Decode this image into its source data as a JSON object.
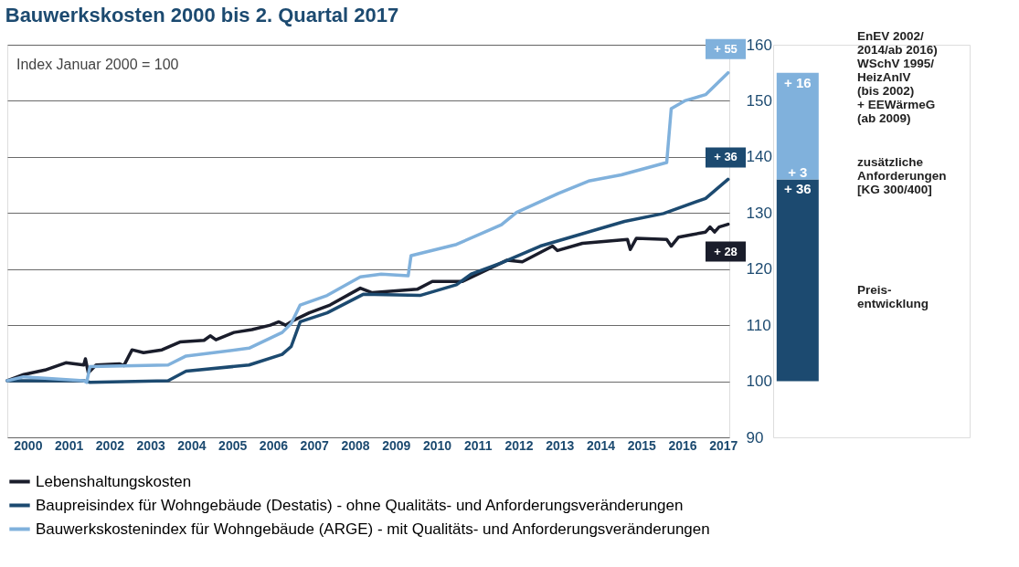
{
  "chart_data": [
    {
      "type": "line",
      "title": "Bauwerkskosten 2000 bis 2. Quartal 2017",
      "annotations": [
        "Index Januar 2000 = 100",
        {
          "text": "+ 28",
          "y": 128.0
        },
        {
          "text": "+ 36",
          "y": 136.0
        },
        {
          "text": "+ 55",
          "y": 155.0
        }
      ],
      "xlim": [
        2000,
        2017.65
      ],
      "xticks": [
        {
          "value": 2000.5,
          "label": "2000"
        },
        {
          "value": 2001.5,
          "label": "2001"
        },
        {
          "value": 2002.5,
          "label": "2002"
        },
        {
          "value": 2003.5,
          "label": "2003"
        },
        {
          "value": 2004.5,
          "label": "2004"
        },
        {
          "value": 2005.5,
          "label": "2005"
        },
        {
          "value": 2006.5,
          "label": "2006"
        },
        {
          "value": 2007.5,
          "label": "2007"
        },
        {
          "value": 2008.5,
          "label": "2008"
        },
        {
          "value": 2009.5,
          "label": "2009"
        },
        {
          "value": 2010.5,
          "label": "2010"
        },
        {
          "value": 2011.5,
          "label": "2011"
        },
        {
          "value": 2012.5,
          "label": "2012"
        },
        {
          "value": 2013.5,
          "label": "2013"
        },
        {
          "value": 2014.5,
          "label": "2014"
        },
        {
          "value": 2015.5,
          "label": "2015"
        },
        {
          "value": 2016.5,
          "label": "2016"
        },
        {
          "value": 2017.5,
          "label": "2017"
        }
      ],
      "ylim": [
        90,
        160
      ],
      "yticks": [
        90,
        100,
        110,
        120,
        130,
        140,
        150,
        160
      ],
      "grid": "y",
      "legend": "bottom",
      "line_style": "solid",
      "marker": "none",
      "series": [
        {
          "name": "Lebenshaltungskosten",
          "color": "#1a1d2b",
          "x": [
            2000.0,
            2000.4,
            2000.92,
            2001.43,
            2001.87,
            2001.91,
            2001.98,
            2002.17,
            2002.75,
            2002.85,
            2003.05,
            2003.33,
            2003.78,
            2004.22,
            2004.81,
            2004.96,
            2005.1,
            2005.54,
            2005.98,
            2006.43,
            2006.64,
            2006.8,
            2007.01,
            2007.38,
            2007.89,
            2008.63,
            2008.92,
            2010.02,
            2010.39,
            2011.13,
            2012.22,
            2012.59,
            2013.33,
            2013.45,
            2014.06,
            2015.16,
            2015.23,
            2015.38,
            2016.12,
            2016.23,
            2016.41,
            2017.07,
            2017.18,
            2017.29,
            2017.4,
            2017.62
          ],
          "values": [
            100.1,
            101.2,
            102.0,
            103.3,
            102.9,
            104.0,
            101.5,
            102.9,
            103.1,
            102.8,
            105.6,
            105.1,
            105.6,
            107.0,
            107.3,
            108.1,
            107.4,
            108.7,
            109.2,
            110.0,
            110.6,
            110.0,
            110.9,
            112.2,
            113.6,
            116.6,
            115.8,
            116.4,
            117.8,
            117.8,
            121.6,
            121.3,
            124.1,
            123.3,
            124.6,
            125.3,
            123.5,
            125.5,
            125.3,
            124.1,
            125.7,
            126.6,
            127.5,
            126.6,
            127.5,
            128.0
          ]
        },
        {
          "name": "Baupreisindex für Wohngebäude (Destatis) - ohne Qualitäts- und Anforderungsveränderungen",
          "color": "#1c4a70",
          "x": [
            2000.0,
            2001.87,
            2002.02,
            2003.93,
            2004.37,
            2005.91,
            2006.72,
            2006.94,
            2007.16,
            2007.82,
            2008.7,
            2010.09,
            2010.98,
            2011.34,
            2012.08,
            2013.03,
            2014.06,
            2015.09,
            2016.04,
            2017.07,
            2017.62
          ],
          "values": [
            100.1,
            100.1,
            99.8,
            100.1,
            101.8,
            102.9,
            104.8,
            106.2,
            110.6,
            112.2,
            115.5,
            115.3,
            117.2,
            119.1,
            121.1,
            124.1,
            126.3,
            128.5,
            129.9,
            132.6,
            136.0
          ]
        },
        {
          "name": "Bauwerkskostenindex für Wohngebäude (ARGE) - mit Qualitäts- und Anforderungsveränderungen",
          "color": "#80b1dc",
          "x": [
            2000.0,
            2000.4,
            2001.87,
            2001.94,
            2002.02,
            2003.93,
            2004.37,
            2005.91,
            2006.72,
            2006.94,
            2007.16,
            2007.82,
            2008.63,
            2009.14,
            2009.8,
            2009.87,
            2010.98,
            2012.08,
            2012.45,
            2013.47,
            2014.21,
            2015.01,
            2016.12,
            2016.23,
            2016.56,
            2017.07,
            2017.62
          ],
          "values": [
            100.1,
            100.8,
            100.1,
            99.8,
            102.6,
            102.9,
            104.5,
            105.9,
            108.7,
            110.3,
            113.6,
            115.3,
            118.6,
            119.1,
            118.8,
            122.4,
            124.4,
            127.9,
            130.1,
            133.5,
            135.7,
            136.8,
            139.0,
            148.6,
            150.0,
            151.1,
            155.0
          ]
        }
      ]
    },
    {
      "type": "bar",
      "stacked": true,
      "categories": [
        null
      ],
      "ylim": [
        -10,
        60
      ],
      "tick_labels": false,
      "series": [
        {
          "color": "#1c4a70",
          "values": [
            36
          ],
          "value_labels": [
            "+ 36"
          ]
        },
        {
          "color": "#80b1dc",
          "values": [
            3
          ],
          "value_labels": [
            "+ 3"
          ]
        },
        {
          "color": "#80b1dc",
          "values": [
            16
          ],
          "value_labels": [
            "+ 16"
          ]
        }
      ],
      "annotations": [
        "EnEV 2002/\n2014/ab 2016)\nWSchV 1995/\nHeizAnlV\n(bis 2002)\n+ EEWärmeG\n(ab 2009)",
        "zusätzliche\nAnforderungen\n[KG 300/400]",
        "Preis-\nentwicklung"
      ]
    }
  ]
}
